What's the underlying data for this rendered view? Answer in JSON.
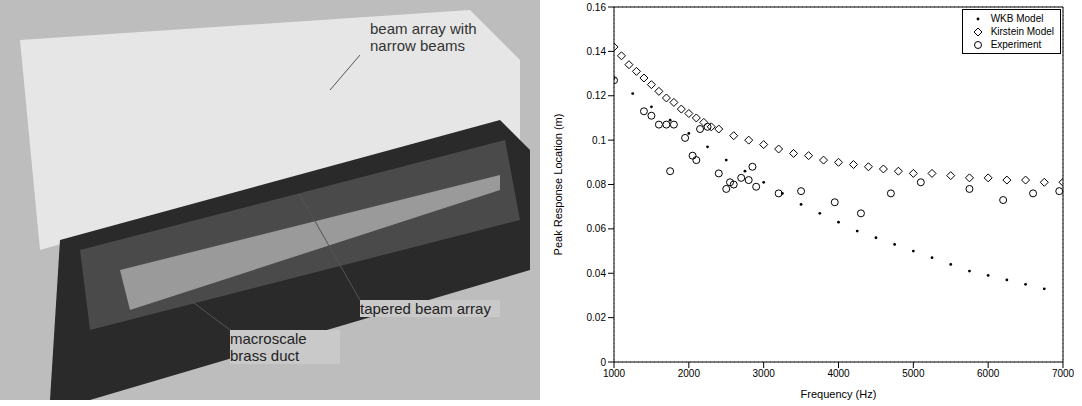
{
  "photo": {
    "labels": [
      "beam array with narrow beams",
      "tapered beam array",
      "macroscale brass duct"
    ]
  },
  "chart_data": {
    "type": "scatter",
    "x_label": "Frequency (Hz)",
    "y_label": "Peak Response Location (m)",
    "xlim": [
      1000,
      7000
    ],
    "xticks": [
      1000,
      2000,
      3000,
      4000,
      5000,
      6000,
      7000
    ],
    "ylim": [
      0,
      0.16
    ],
    "yticks": [
      0,
      0.02,
      0.04,
      0.06,
      0.08,
      0.1,
      0.12,
      0.14,
      0.16
    ],
    "grid": true,
    "legend": "upper right",
    "series": [
      {
        "name": "WKB Model",
        "color": "#000000",
        "marker": "dot",
        "x": [
          1000,
          1250,
          1500,
          1750,
          2000,
          2250,
          2500,
          2750,
          3000,
          3250,
          3500,
          3750,
          4000,
          4250,
          4500,
          4750,
          5000,
          5250,
          5500,
          5750,
          6000,
          6250,
          6500,
          6750
        ],
        "values": [
          0.128,
          0.121,
          0.115,
          0.109,
          0.103,
          0.097,
          0.091,
          0.086,
          0.081,
          0.076,
          0.071,
          0.067,
          0.063,
          0.059,
          0.056,
          0.053,
          0.05,
          0.047,
          0.044,
          0.041,
          0.039,
          0.037,
          0.035,
          0.033
        ]
      },
      {
        "name": "Kirstein Model",
        "color": "#000000",
        "marker": "diamond",
        "x": [
          1000,
          1100,
          1200,
          1300,
          1400,
          1500,
          1600,
          1700,
          1800,
          1900,
          2000,
          2100,
          2200,
          2300,
          2400,
          2600,
          2800,
          3000,
          3200,
          3400,
          3600,
          3800,
          4000,
          4200,
          4400,
          4600,
          4800,
          5000,
          5250,
          5500,
          5750,
          6000,
          6250,
          6500,
          6750,
          7000
        ],
        "values": [
          0.142,
          0.138,
          0.134,
          0.131,
          0.128,
          0.125,
          0.122,
          0.119,
          0.117,
          0.114,
          0.112,
          0.11,
          0.108,
          0.106,
          0.105,
          0.102,
          0.1,
          0.098,
          0.096,
          0.094,
          0.093,
          0.091,
          0.09,
          0.089,
          0.088,
          0.087,
          0.086,
          0.085,
          0.085,
          0.084,
          0.083,
          0.083,
          0.082,
          0.082,
          0.081,
          0.081
        ]
      },
      {
        "name": "Experiment",
        "color": "#000000",
        "marker": "circle",
        "x": [
          1000,
          1400,
          1500,
          1600,
          1700,
          1750,
          1800,
          1950,
          2050,
          2100,
          2150,
          2250,
          2400,
          2500,
          2550,
          2600,
          2700,
          2800,
          2850,
          2900,
          3200,
          3500,
          3950,
          4300,
          4700,
          5100,
          5750,
          6200,
          6600,
          6950
        ],
        "values": [
          0.127,
          0.113,
          0.111,
          0.107,
          0.107,
          0.086,
          0.107,
          0.101,
          0.093,
          0.091,
          0.105,
          0.106,
          0.085,
          0.078,
          0.081,
          0.08,
          0.083,
          0.082,
          0.088,
          0.079,
          0.076,
          0.077,
          0.072,
          0.067,
          0.076,
          0.081,
          0.078,
          0.073,
          0.076,
          0.077
        ]
      }
    ]
  }
}
